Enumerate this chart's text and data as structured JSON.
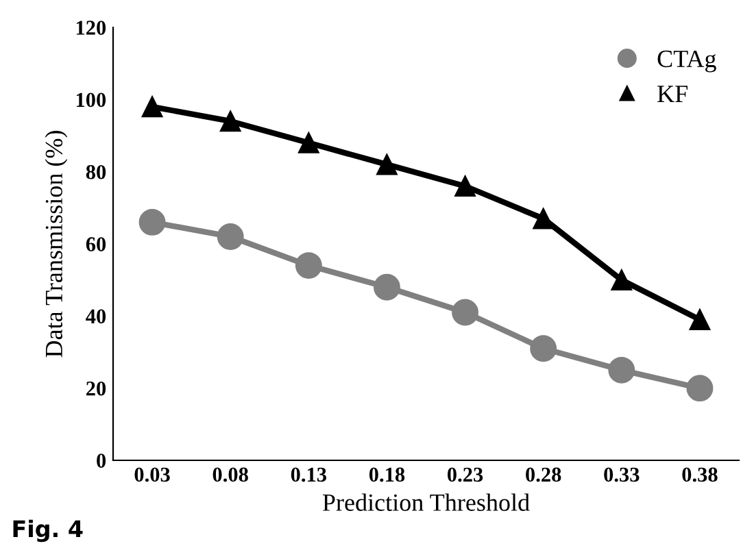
{
  "chart_data": {
    "type": "line",
    "xlabel": "Prediction Threshold",
    "ylabel": "Data Transmission (%)",
    "categories": [
      "0.03",
      "0.08",
      "0.13",
      "0.18",
      "0.23",
      "0.28",
      "0.33",
      "0.38"
    ],
    "series": [
      {
        "name": "CTAg",
        "color": "#808080",
        "marker": "circle",
        "values": [
          66,
          62,
          54,
          48,
          41,
          31,
          25,
          20
        ]
      },
      {
        "name": "KF",
        "color": "#000000",
        "marker": "triangle",
        "values": [
          98,
          94,
          88,
          82,
          76,
          67,
          50,
          39
        ]
      }
    ],
    "ylim": [
      0,
      120
    ],
    "yticks": [
      0,
      20,
      40,
      60,
      80,
      100,
      120
    ],
    "grid": false,
    "legend": "top right",
    "annotations": [
      "Fig. 4"
    ]
  }
}
